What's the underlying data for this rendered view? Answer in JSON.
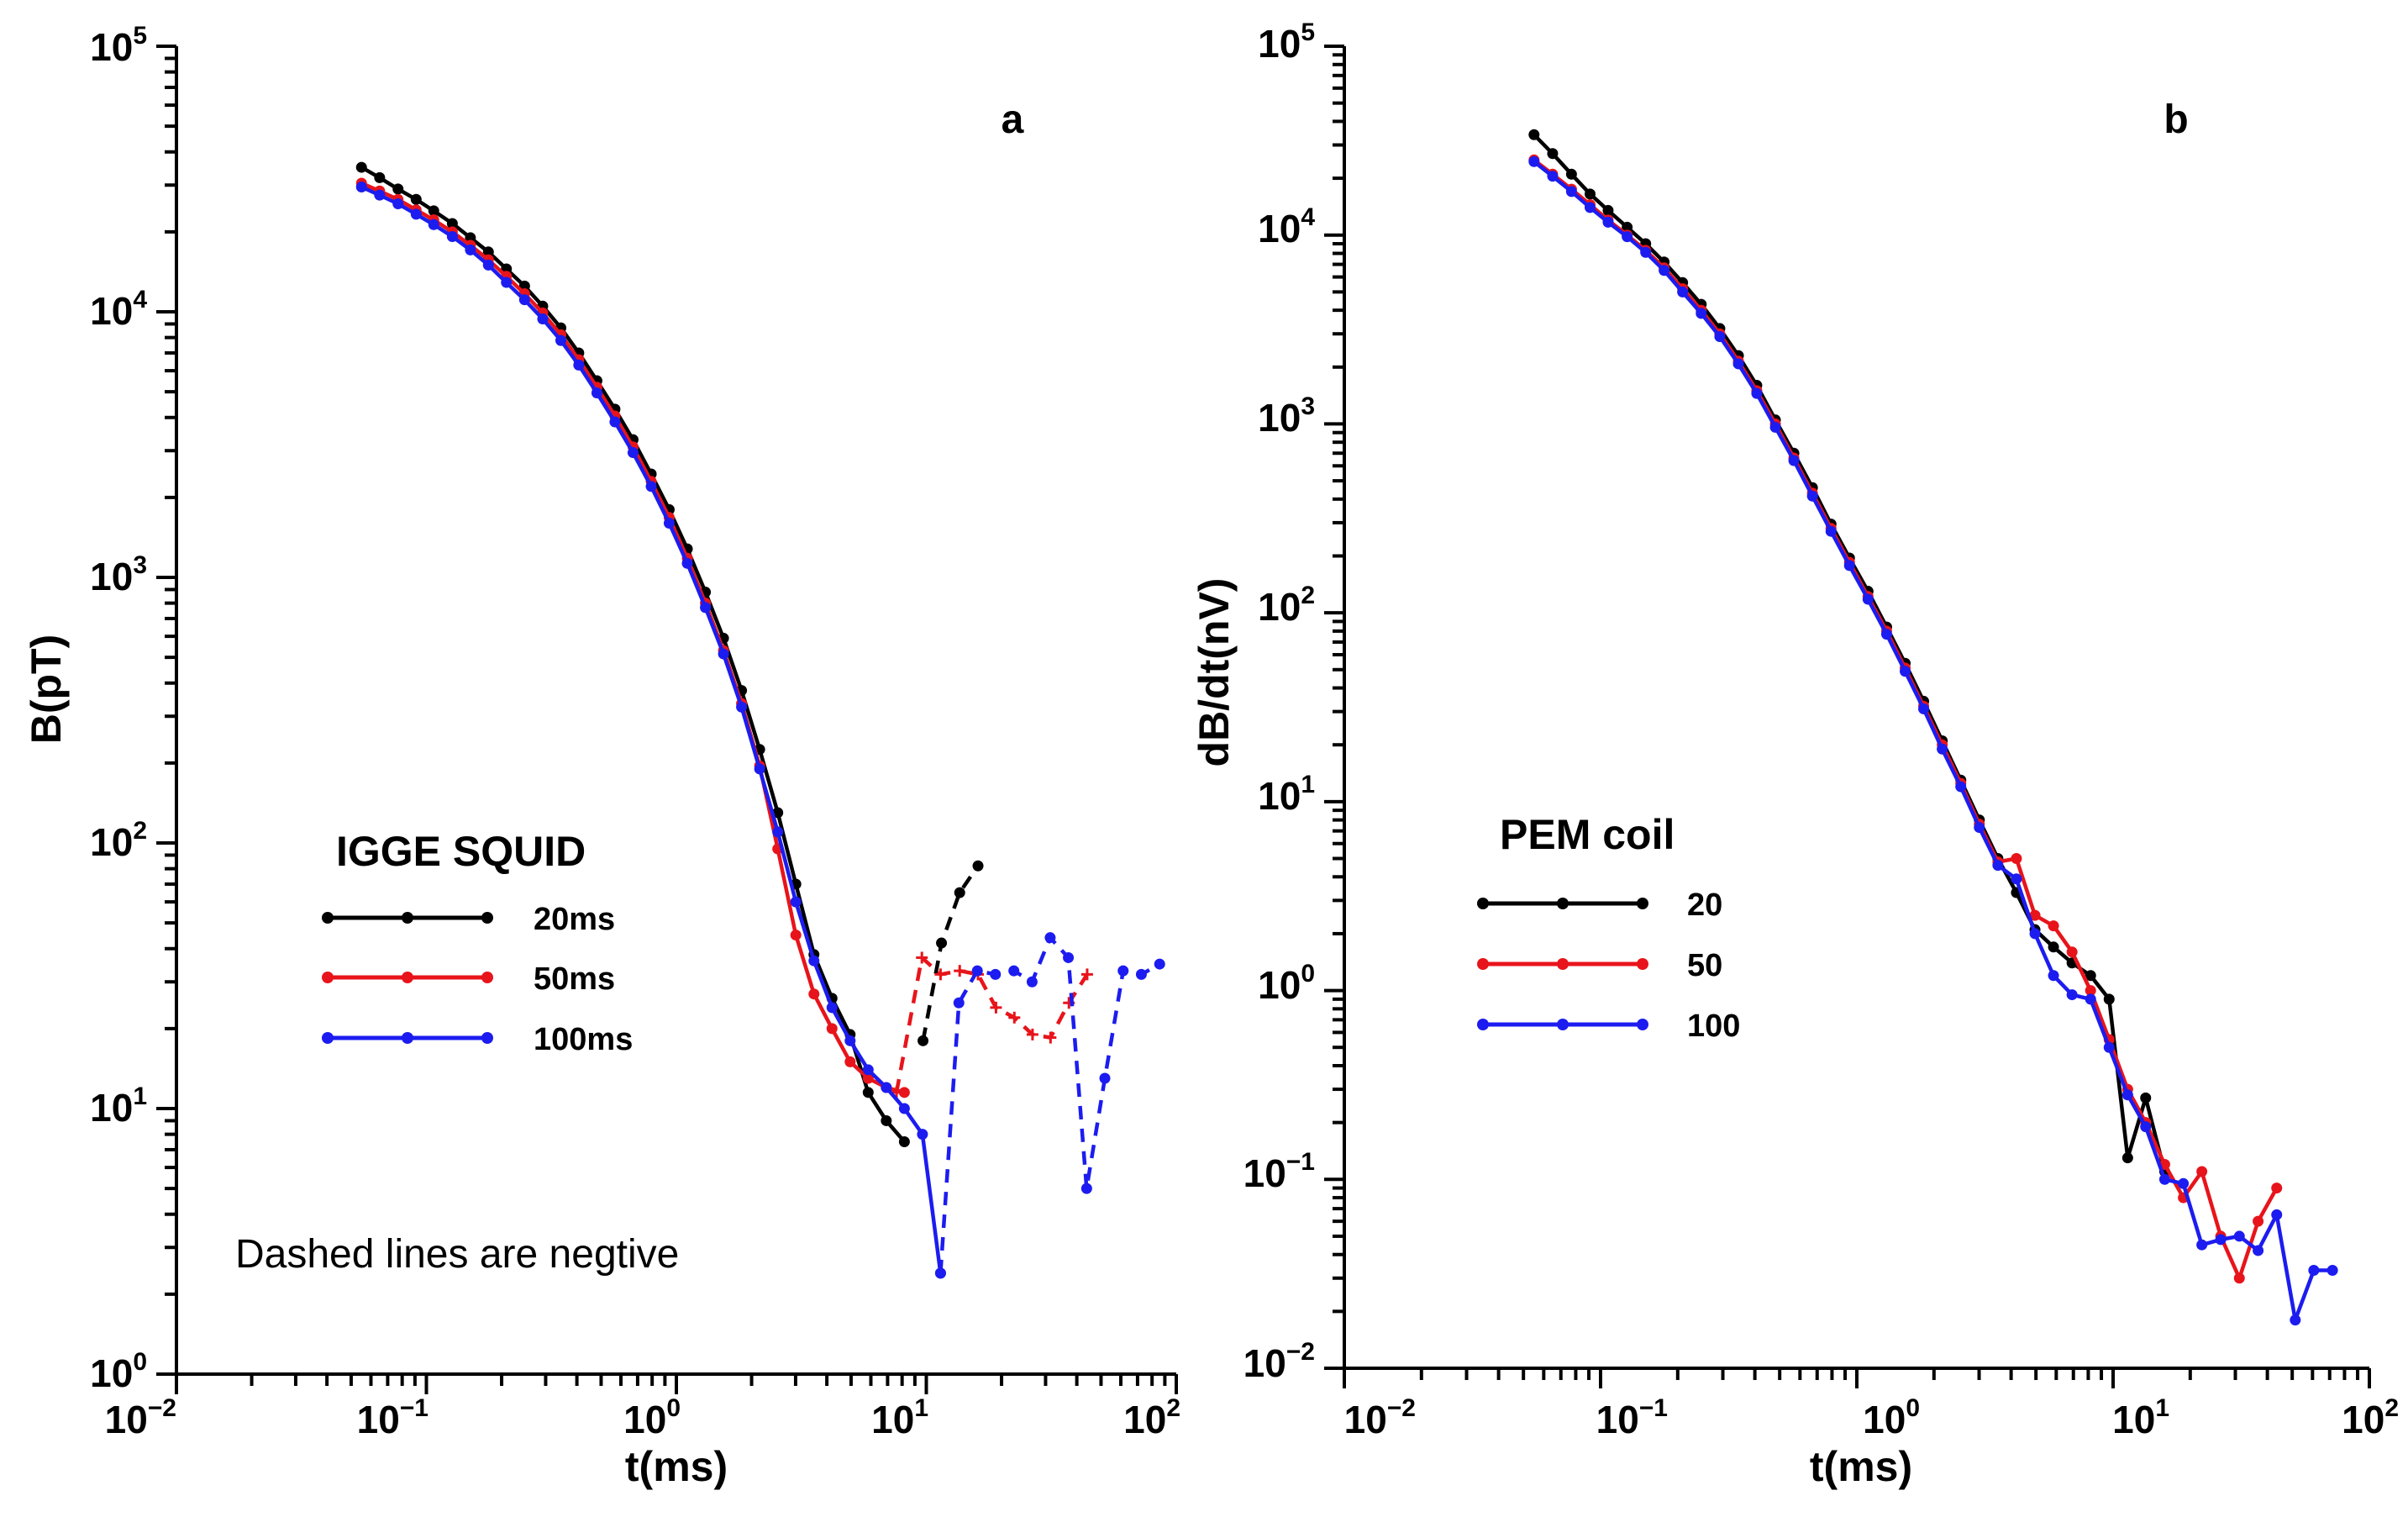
{
  "chart_data": [
    {
      "id": "a",
      "type": "line",
      "panel_label": "a",
      "xscale": "log",
      "yscale": "log",
      "xlim": [
        0.01,
        100
      ],
      "ylim": [
        1,
        100000
      ],
      "xlabel": "t(ms)",
      "ylabel": "B(pT)",
      "x_ticks": [
        {
          "base": "10",
          "exp": "−2"
        },
        {
          "base": "10",
          "exp": "−1"
        },
        {
          "base": "10",
          "exp": "0"
        },
        {
          "base": "10",
          "exp": "1"
        },
        {
          "base": "10",
          "exp": "2"
        }
      ],
      "y_ticks": [
        {
          "base": "10",
          "exp": "0"
        },
        {
          "base": "10",
          "exp": "1"
        },
        {
          "base": "10",
          "exp": "2"
        },
        {
          "base": "10",
          "exp": "3"
        },
        {
          "base": "10",
          "exp": "4"
        },
        {
          "base": "10",
          "exp": "5"
        }
      ],
      "legend": {
        "title": "IGGE SQUID",
        "position": "center-left",
        "entries": [
          {
            "label": "20ms",
            "color": "#000000"
          },
          {
            "label": "50ms",
            "color": "#e8141b"
          },
          {
            "label": "100ms",
            "color": "#1c1cf0"
          }
        ]
      },
      "annotation": "Dashed lines are negtive",
      "series": [
        {
          "name": "20ms",
          "color": "#000000",
          "marker": "dot",
          "x": [
            0.055,
            0.065,
            0.077,
            0.091,
            0.107,
            0.127,
            0.15,
            0.177,
            0.209,
            0.247,
            0.292,
            0.345,
            0.407,
            0.481,
            0.568,
            0.671,
            0.793,
            0.936,
            1.106,
            1.307,
            1.544,
            1.823,
            2.154,
            2.545,
            3.006,
            3.552,
            4.195,
            4.957,
            5.854,
            6.916,
            8.17
          ],
          "y": [
            35000,
            32000,
            29000,
            26500,
            24000,
            21500,
            19000,
            16800,
            14500,
            12500,
            10500,
            8700,
            7000,
            5500,
            4300,
            3300,
            2450,
            1800,
            1280,
            880,
            590,
            375,
            225,
            130,
            70,
            38,
            26,
            19,
            11.5,
            9,
            7.5
          ]
        },
        {
          "name": "20ms negative",
          "color": "#000000",
          "marker": "dot",
          "dashed": true,
          "x": [
            9.7,
            11.5,
            13.6,
            16.1
          ],
          "y": [
            18,
            42,
            65,
            82
          ]
        },
        {
          "name": "50ms",
          "color": "#e8141b",
          "marker": "dot",
          "x": [
            0.055,
            0.065,
            0.077,
            0.091,
            0.107,
            0.127,
            0.15,
            0.177,
            0.209,
            0.247,
            0.292,
            0.345,
            0.407,
            0.481,
            0.568,
            0.671,
            0.793,
            0.936,
            1.106,
            1.307,
            1.544,
            1.823,
            2.154,
            2.545,
            3.006,
            3.552,
            4.195,
            4.957,
            5.854,
            6.916,
            8.17
          ],
          "y": [
            30500,
            28500,
            26500,
            24200,
            22200,
            20000,
            17800,
            15700,
            13600,
            11700,
            9900,
            8200,
            6600,
            5200,
            4050,
            3100,
            2300,
            1680,
            1180,
            800,
            530,
            335,
            195,
            95,
            45,
            27,
            20,
            15,
            13,
            12,
            11.5
          ]
        },
        {
          "name": "50ms negative",
          "color": "#e8141b",
          "marker": "plus",
          "dashed": true,
          "x": [
            7.6,
            9.6,
            11.4,
            13.6,
            16.1,
            19.0,
            22.5,
            26.6,
            31.4,
            37.2,
            44.0
          ],
          "y": [
            11.5,
            37,
            32,
            33,
            32,
            24,
            22,
            19,
            18.5,
            25,
            32
          ]
        },
        {
          "name": "100ms",
          "color": "#1c1cf0",
          "marker": "dot",
          "x": [
            0.055,
            0.065,
            0.077,
            0.091,
            0.107,
            0.127,
            0.15,
            0.177,
            0.209,
            0.247,
            0.292,
            0.345,
            0.407,
            0.481,
            0.568,
            0.671,
            0.793,
            0.936,
            1.106,
            1.307,
            1.544,
            1.823,
            2.154,
            2.545,
            3.006,
            3.552,
            4.195,
            4.957,
            5.854,
            6.916,
            8.17,
            9.65,
            11.4
          ],
          "y": [
            29500,
            27500,
            25500,
            23300,
            21300,
            19200,
            17100,
            15000,
            12900,
            11100,
            9400,
            7800,
            6300,
            4950,
            3850,
            2950,
            2200,
            1600,
            1130,
            770,
            515,
            325,
            190,
            110,
            60,
            36,
            24,
            18,
            14,
            12,
            10,
            8,
            2.4
          ]
        },
        {
          "name": "100ms negative",
          "color": "#1c1cf0",
          "marker": "dot",
          "dashed": true,
          "x": [
            11.4,
            13.5,
            16.0,
            18.9,
            22.4,
            26.5,
            31.3,
            37.0,
            43.8,
            51.8,
            61.3,
            72.5,
            85.8
          ],
          "y": [
            2.4,
            25,
            33,
            32,
            33,
            30,
            44,
            37,
            5,
            13,
            33,
            32,
            35
          ]
        }
      ]
    },
    {
      "id": "b",
      "type": "line",
      "panel_label": "b",
      "xscale": "log",
      "yscale": "log",
      "xlim": [
        0.01,
        100
      ],
      "ylim": [
        0.01,
        100000
      ],
      "xlabel": "t(ms)",
      "ylabel": "dB/dt(nV)",
      "x_ticks": [
        {
          "base": "10",
          "exp": "−2"
        },
        {
          "base": "10",
          "exp": "−1"
        },
        {
          "base": "10",
          "exp": "0"
        },
        {
          "base": "10",
          "exp": "1"
        },
        {
          "base": "10",
          "exp": "2"
        }
      ],
      "y_ticks": [
        {
          "base": "10",
          "exp": "−2"
        },
        {
          "base": "10",
          "exp": "−1"
        },
        {
          "base": "10",
          "exp": "0"
        },
        {
          "base": "10",
          "exp": "1"
        },
        {
          "base": "10",
          "exp": "2"
        },
        {
          "base": "10",
          "exp": "3"
        },
        {
          "base": "10",
          "exp": "4"
        },
        {
          "base": "10",
          "exp": "5"
        }
      ],
      "legend": {
        "title": "PEM coil",
        "position": "center-left",
        "entries": [
          {
            "label": "20",
            "color": "#000000"
          },
          {
            "label": "50",
            "color": "#e8141b"
          },
          {
            "label": "100",
            "color": "#1c1cf0"
          }
        ]
      },
      "series": [
        {
          "name": "20",
          "color": "#000000",
          "marker": "dot",
          "x": [
            0.055,
            0.065,
            0.077,
            0.091,
            0.107,
            0.127,
            0.15,
            0.177,
            0.209,
            0.247,
            0.292,
            0.345,
            0.407,
            0.481,
            0.568,
            0.671,
            0.793,
            0.936,
            1.106,
            1.307,
            1.544,
            1.823,
            2.154,
            2.545,
            3.006,
            3.552,
            4.195,
            4.957,
            5.854,
            6.916,
            8.17,
            9.65,
            11.4,
            13.4,
            15.9
          ],
          "y": [
            34000,
            27000,
            21000,
            16500,
            13500,
            11000,
            9000,
            7200,
            5600,
            4300,
            3200,
            2300,
            1600,
            1050,
            700,
            460,
            295,
            195,
            130,
            84,
            54,
            34,
            21,
            13,
            8,
            5,
            3.3,
            2.1,
            1.7,
            1.4,
            1.2,
            0.9,
            0.13,
            0.27,
            0.11
          ]
        },
        {
          "name": "50",
          "color": "#e8141b",
          "marker": "dot",
          "x": [
            0.055,
            0.065,
            0.077,
            0.091,
            0.107,
            0.127,
            0.15,
            0.177,
            0.209,
            0.247,
            0.292,
            0.345,
            0.407,
            0.481,
            0.568,
            0.671,
            0.793,
            0.936,
            1.106,
            1.307,
            1.544,
            1.823,
            2.154,
            2.545,
            3.006,
            3.552,
            4.195,
            4.957,
            5.854,
            6.916,
            8.17,
            9.65,
            11.4,
            13.4,
            15.9,
            18.8,
            22.2,
            26.3,
            31.1,
            36.8,
            43.5
          ],
          "y": [
            25000,
            21000,
            17500,
            14500,
            12000,
            10000,
            8300,
            6700,
            5200,
            4000,
            3000,
            2150,
            1500,
            1000,
            660,
            430,
            280,
            185,
            122,
            80,
            51,
            32,
            20,
            12.5,
            7.6,
            4.8,
            5.0,
            2.5,
            2.2,
            1.6,
            1.0,
            0.55,
            0.3,
            0.2,
            0.12,
            0.08,
            0.11,
            0.05,
            0.03,
            0.06,
            0.09
          ]
        },
        {
          "name": "100",
          "color": "#1c1cf0",
          "marker": "dot",
          "x": [
            0.055,
            0.065,
            0.077,
            0.091,
            0.107,
            0.127,
            0.15,
            0.177,
            0.209,
            0.247,
            0.292,
            0.345,
            0.407,
            0.481,
            0.568,
            0.671,
            0.793,
            0.936,
            1.106,
            1.307,
            1.544,
            1.823,
            2.154,
            2.545,
            3.006,
            3.552,
            4.195,
            4.957,
            5.854,
            6.916,
            8.17,
            9.65,
            11.4,
            13.4,
            15.9,
            18.8,
            22.2,
            26.3,
            31.1,
            36.8,
            43.5,
            51.4,
            60.7,
            71.8
          ],
          "y": [
            24500,
            20500,
            17000,
            14000,
            11700,
            9800,
            8100,
            6500,
            5000,
            3850,
            2900,
            2080,
            1450,
            960,
            640,
            415,
            270,
            178,
            118,
            77,
            49,
            31,
            19,
            12,
            7.3,
            4.6,
            3.9,
            2.0,
            1.2,
            0.95,
            0.9,
            0.5,
            0.28,
            0.19,
            0.1,
            0.095,
            0.045,
            0.048,
            0.05,
            0.042,
            0.065,
            0.018,
            0.033,
            0.033
          ]
        }
      ]
    }
  ]
}
